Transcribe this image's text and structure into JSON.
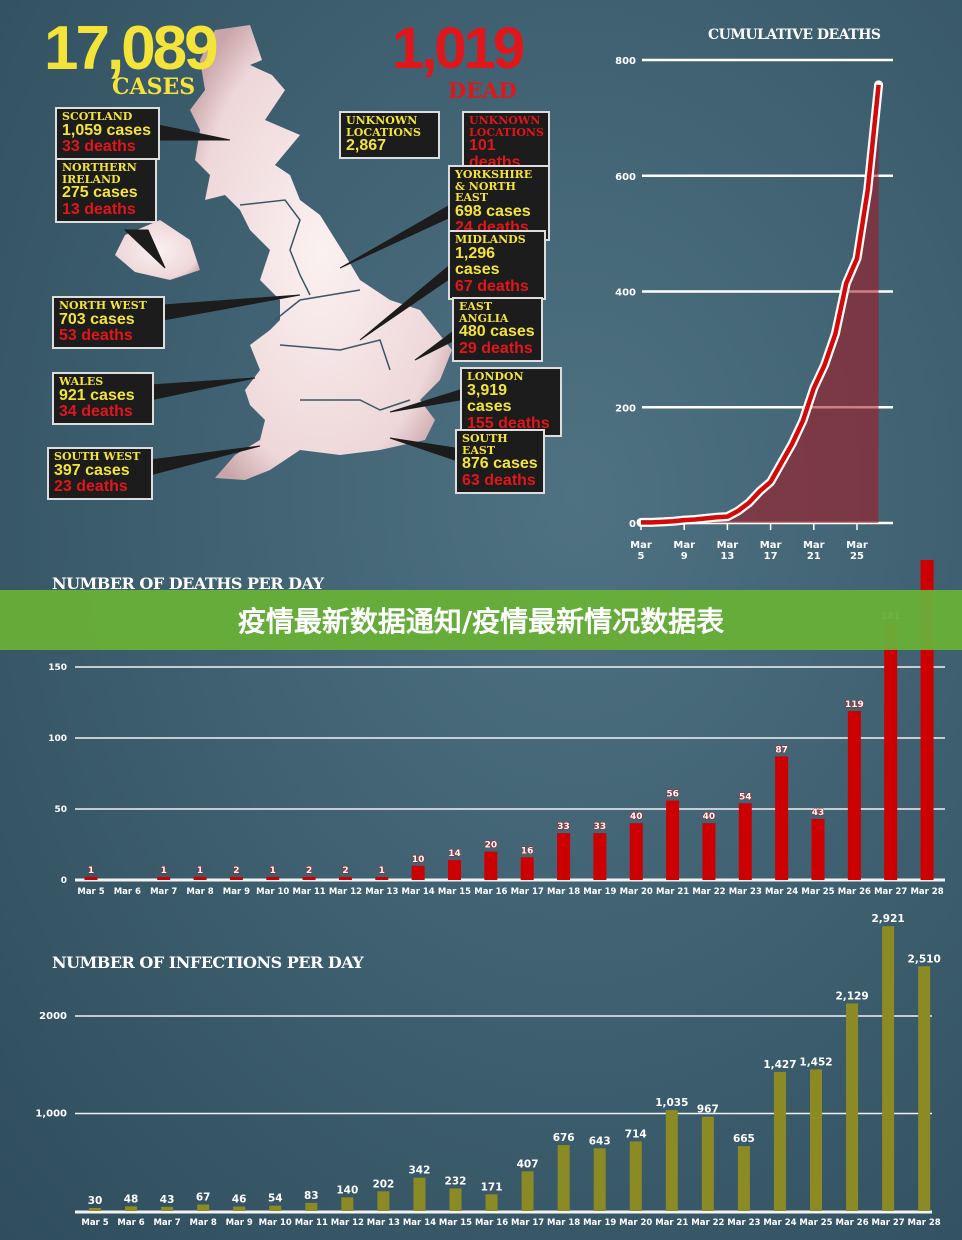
{
  "headline": {
    "cases_number": "17,089",
    "cases_label": "CASES",
    "dead_number": "1,019",
    "dead_label": "DEAD"
  },
  "regions": [
    {
      "name": "SCOTLAND",
      "cases": "1,059 cases",
      "deaths": "33 deaths"
    },
    {
      "name": "NORTHERN IRELAND",
      "cases": "275 cases",
      "deaths": "13 deaths"
    },
    {
      "name": "UNKNOWN LOCATIONS",
      "cases": "2,867",
      "deaths": ""
    },
    {
      "name": "UNKNOWN LOCATIONS",
      "cases": "",
      "deaths": "101 deaths"
    },
    {
      "name": "YORKSHIRE & NORTH EAST",
      "cases": "698 cases",
      "deaths": "24 deaths"
    },
    {
      "name": "MIDLANDS",
      "cases": "1,296 cases",
      "deaths": "67 deaths"
    },
    {
      "name": "NORTH WEST",
      "cases": "703 cases",
      "deaths": "53 deaths"
    },
    {
      "name": "EAST ANGLIA",
      "cases": "480 cases",
      "deaths": "29 deaths"
    },
    {
      "name": "WALES",
      "cases": "921 cases",
      "deaths": "34 deaths"
    },
    {
      "name": "LONDON",
      "cases": "3,919 cases",
      "deaths": "155 deaths"
    },
    {
      "name": "SOUTH WEST",
      "cases": "397 cases",
      "deaths": "23 deaths"
    },
    {
      "name": "SOUTH EAST",
      "cases": "876 cases",
      "deaths": "63 deaths"
    }
  ],
  "banner": {
    "text": "疫情最新数据通知/疫情最新情况数据表"
  },
  "chart_data": [
    {
      "type": "area",
      "title": "CUMULATIVE DEATHS",
      "xlabel": "",
      "ylabel": "",
      "ylim": [
        0,
        800
      ],
      "yticks": [
        0,
        200,
        400,
        600,
        800
      ],
      "xtick_labels": [
        [
          "Mar",
          "5"
        ],
        [
          "Mar",
          "9"
        ],
        [
          "Mar",
          "13"
        ],
        [
          "Mar",
          "17"
        ],
        [
          "Mar",
          "21"
        ],
        [
          "Mar",
          "25"
        ]
      ],
      "x": [
        5,
        6,
        7,
        8,
        9,
        10,
        11,
        12,
        13,
        14,
        15,
        16,
        17,
        18,
        19,
        20,
        21,
        22,
        23,
        24,
        25,
        26,
        27
      ],
      "values": [
        1,
        1,
        2,
        3,
        5,
        6,
        8,
        10,
        11,
        21,
        35,
        55,
        71,
        104,
        137,
        177,
        233,
        273,
        327,
        414,
        457,
        576,
        757
      ],
      "color": "#d20a0a"
    },
    {
      "type": "bar",
      "title": "NUMBER OF DEATHS PER DAY",
      "ylim": [
        0,
        260
      ],
      "yticks": [
        0,
        50,
        100,
        150
      ],
      "categories": [
        "Mar 5",
        "Mar 6",
        "Mar 7",
        "Mar 8",
        "Mar 9",
        "Mar 10",
        "Mar 11",
        "Mar 12",
        "Mar 13",
        "Mar 14",
        "Mar 15",
        "Mar 16",
        "Mar 17",
        "Mar 18",
        "Mar 19",
        "Mar 20",
        "Mar 21",
        "Mar 22",
        "Mar 23",
        "Mar 24",
        "Mar 25",
        "Mar 26",
        "Mar 27",
        "Mar 28"
      ],
      "values": [
        1,
        null,
        1,
        1,
        2,
        1,
        2,
        2,
        1,
        10,
        14,
        20,
        16,
        33,
        33,
        40,
        56,
        40,
        54,
        87,
        43,
        119,
        181,
        260
      ],
      "color": "#cc0000"
    },
    {
      "type": "bar",
      "title": "NUMBER OF INFECTIONS PER DAY",
      "ylim": [
        0,
        2921
      ],
      "yticks": [
        1000,
        2000
      ],
      "ytick_labels": [
        "1,000",
        "2000"
      ],
      "categories": [
        "Mar 5",
        "Mar 6",
        "Mar 7",
        "Mar 8",
        "Mar 9",
        "Mar 10",
        "Mar 11",
        "Mar 12",
        "Mar 13",
        "Mar 14",
        "Mar 15",
        "Mar 16",
        "Mar 17",
        "Mar 18",
        "Mar 19",
        "Mar 20",
        "Mar 21",
        "Mar 22",
        "Mar 23",
        "Mar 24",
        "Mar 25",
        "Mar 26",
        "Mar 27",
        "Mar 28"
      ],
      "values": [
        30,
        48,
        43,
        67,
        46,
        54,
        83,
        140,
        202,
        342,
        232,
        171,
        407,
        676,
        643,
        714,
        1035,
        967,
        665,
        1427,
        1452,
        2129,
        2921,
        2510
      ],
      "labels": [
        "30",
        "48",
        "43",
        "67",
        "46",
        "54",
        "83",
        "140",
        "202",
        "342",
        "232",
        "171",
        "407",
        "676",
        "643",
        "714",
        "1,035",
        "967",
        "665",
        "1,427",
        "1,452",
        "2,129",
        "2,921",
        "2,510"
      ],
      "color": "#8c8a25"
    }
  ]
}
